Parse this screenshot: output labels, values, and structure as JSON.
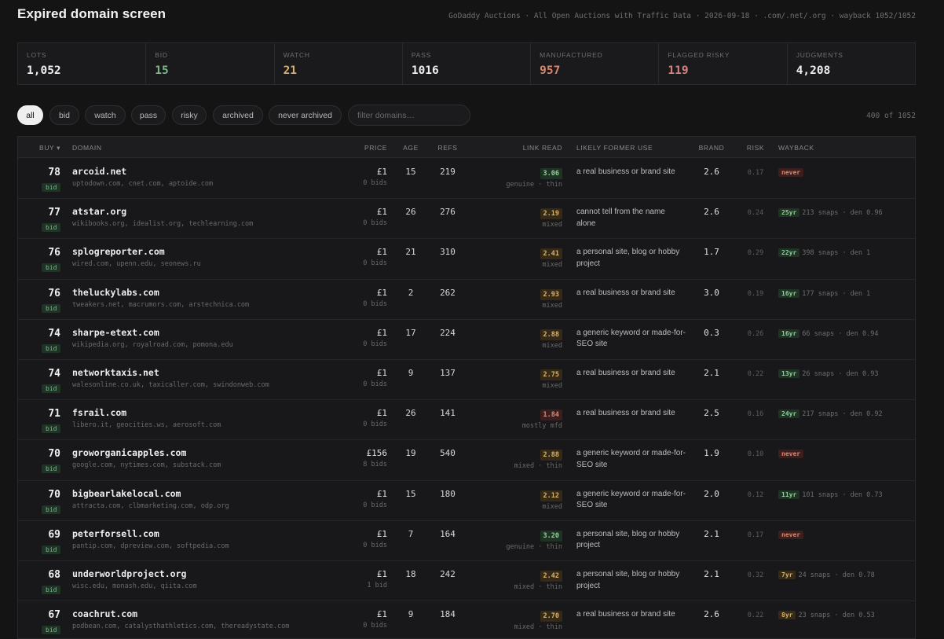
{
  "header": {
    "title": "Expired domain screen",
    "subtitle": "GoDaddy Auctions · All Open Auctions with Traffic Data · 2026-09-18 · .com/.net/.org · wayback 1052/1052"
  },
  "stats": [
    {
      "label": "LOTS",
      "value": "1,052"
    },
    {
      "label": "BID",
      "value": "15"
    },
    {
      "label": "WATCH",
      "value": "21"
    },
    {
      "label": "PASS",
      "value": "1016"
    },
    {
      "label": "MANUFACTURED",
      "value": "957"
    },
    {
      "label": "FLAGGED RISKY",
      "value": "119"
    },
    {
      "label": "JUDGMENTS",
      "value": "4,208"
    }
  ],
  "filters": {
    "pills": [
      "all",
      "bid",
      "watch",
      "pass",
      "risky",
      "archived",
      "never archived"
    ],
    "search_placeholder": "filter domains…",
    "count": "400 of 1052"
  },
  "table": {
    "headers": {
      "buy": "BUY ▾",
      "domain": "DOMAIN",
      "price": "PRICE",
      "age": "AGE",
      "refs": "REFS",
      "link_read": "LINK READ",
      "use": "LIKELY FORMER USE",
      "brand": "BRAND",
      "risk": "RISK",
      "wayback": "WAYBACK"
    },
    "rows": [
      {
        "score": "78",
        "badge": "bid",
        "domain": "arcoid.net",
        "refs_sites": "uptodown.com, cnet.com, aptoide.com",
        "price": "£1",
        "bids": "0 bids",
        "age": "15",
        "refs": "219",
        "lr": "3.06",
        "lr_tone": "g",
        "lr_label": "genuine · thin",
        "use": "a real business or brand site",
        "brand": "2.6",
        "risk": "0.17",
        "wb_badge": "never",
        "wb_tone": "never",
        "wb_text": ""
      },
      {
        "score": "77",
        "badge": "bid",
        "domain": "atstar.org",
        "refs_sites": "wikibooks.org, idealist.org, techlearning.com",
        "price": "£1",
        "bids": "0 bids",
        "age": "26",
        "refs": "276",
        "lr": "2.19",
        "lr_tone": "a",
        "lr_label": "mixed",
        "use": "cannot tell from the name alone",
        "brand": "2.6",
        "risk": "0.24",
        "wb_badge": "25yr",
        "wb_tone": "g",
        "wb_text": "213 snaps · den 0.96"
      },
      {
        "score": "76",
        "badge": "bid",
        "domain": "splogreporter.com",
        "refs_sites": "wired.com, upenn.edu, seonews.ru",
        "price": "£1",
        "bids": "0 bids",
        "age": "21",
        "refs": "310",
        "lr": "2.41",
        "lr_tone": "a",
        "lr_label": "mixed",
        "use": "a personal site, blog or hobby project",
        "brand": "1.7",
        "risk": "0.29",
        "wb_badge": "22yr",
        "wb_tone": "g",
        "wb_text": "398 snaps · den 1"
      },
      {
        "score": "76",
        "badge": "bid",
        "domain": "theluckylabs.com",
        "refs_sites": "tweakers.net, macrumors.com, arstechnica.com",
        "price": "£1",
        "bids": "0 bids",
        "age": "2",
        "refs": "262",
        "lr": "2.93",
        "lr_tone": "a",
        "lr_label": "mixed",
        "use": "a real business or brand site",
        "brand": "3.0",
        "risk": "0.19",
        "wb_badge": "16yr",
        "wb_tone": "g",
        "wb_text": "177 snaps · den 1"
      },
      {
        "score": "74",
        "badge": "bid",
        "domain": "sharpe-etext.com",
        "refs_sites": "wikipedia.org, royalroad.com, pomona.edu",
        "price": "£1",
        "bids": "0 bids",
        "age": "17",
        "refs": "224",
        "lr": "2.88",
        "lr_tone": "a",
        "lr_label": "mixed",
        "use": "a generic keyword or made-for-SEO site",
        "brand": "0.3",
        "risk": "0.26",
        "wb_badge": "16yr",
        "wb_tone": "g",
        "wb_text": "66 snaps · den 0.94"
      },
      {
        "score": "74",
        "badge": "bid",
        "domain": "networktaxis.net",
        "refs_sites": "walesonline.co.uk, taxicaller.com, swindonweb.com",
        "price": "£1",
        "bids": "0 bids",
        "age": "9",
        "refs": "137",
        "lr": "2.75",
        "lr_tone": "a",
        "lr_label": "mixed",
        "use": "a real business or brand site",
        "brand": "2.1",
        "risk": "0.22",
        "wb_badge": "13yr",
        "wb_tone": "g",
        "wb_text": "26 snaps · den 0.93"
      },
      {
        "score": "71",
        "badge": "bid",
        "domain": "fsrail.com",
        "refs_sites": "libero.it, geocities.ws, aerosoft.com",
        "price": "£1",
        "bids": "0 bids",
        "age": "26",
        "refs": "141",
        "lr": "1.84",
        "lr_tone": "r",
        "lr_label": "mostly mfd",
        "use": "a real business or brand site",
        "brand": "2.5",
        "risk": "0.16",
        "wb_badge": "24yr",
        "wb_tone": "g",
        "wb_text": "217 snaps · den 0.92"
      },
      {
        "score": "70",
        "badge": "bid",
        "domain": "groworganicapples.com",
        "refs_sites": "google.com, nytimes.com, substack.com",
        "price": "£156",
        "bids": "8 bids",
        "age": "19",
        "refs": "540",
        "lr": "2.88",
        "lr_tone": "a",
        "lr_label": "mixed · thin",
        "use": "a generic keyword or made-for-SEO site",
        "brand": "1.9",
        "risk": "0.10",
        "wb_badge": "never",
        "wb_tone": "never",
        "wb_text": ""
      },
      {
        "score": "70",
        "badge": "bid",
        "domain": "bigbearlakelocal.com",
        "refs_sites": "attracta.com, clbmarketing.com, odp.org",
        "price": "£1",
        "bids": "0 bids",
        "age": "15",
        "refs": "180",
        "lr": "2.12",
        "lr_tone": "a",
        "lr_label": "mixed",
        "use": "a generic keyword or made-for-SEO site",
        "brand": "2.0",
        "risk": "0.12",
        "wb_badge": "11yr",
        "wb_tone": "g",
        "wb_text": "101 snaps · den 0.73"
      },
      {
        "score": "69",
        "badge": "bid",
        "domain": "peterforsell.com",
        "refs_sites": "pantip.com, dpreview.com, softpedia.com",
        "price": "£1",
        "bids": "0 bids",
        "age": "7",
        "refs": "164",
        "lr": "3.20",
        "lr_tone": "g",
        "lr_label": "genuine · thin",
        "use": "a personal site, blog or hobby project",
        "brand": "2.1",
        "risk": "0.17",
        "wb_badge": "never",
        "wb_tone": "never",
        "wb_text": ""
      },
      {
        "score": "68",
        "badge": "bid",
        "domain": "underworldproject.org",
        "refs_sites": "wisc.edu, monash.edu, qiita.com",
        "price": "£1",
        "bids": "1 bid",
        "age": "18",
        "refs": "242",
        "lr": "2.42",
        "lr_tone": "a",
        "lr_label": "mixed · thin",
        "use": "a personal site, blog or hobby project",
        "brand": "2.1",
        "risk": "0.32",
        "wb_badge": "7yr",
        "wb_tone": "a",
        "wb_text": "24 snaps · den 0.78"
      },
      {
        "score": "67",
        "badge": "bid",
        "domain": "coachrut.com",
        "refs_sites": "podbean.com, catalysthathletics.com, thereadystate.com",
        "price": "£1",
        "bids": "0 bids",
        "age": "9",
        "refs": "184",
        "lr": "2.70",
        "lr_tone": "a",
        "lr_label": "mixed · thin",
        "use": "a real business or brand site",
        "brand": "2.6",
        "risk": "0.22",
        "wb_badge": "8yr",
        "wb_tone": "a",
        "wb_text": "23 snaps · den 0.53"
      }
    ]
  }
}
